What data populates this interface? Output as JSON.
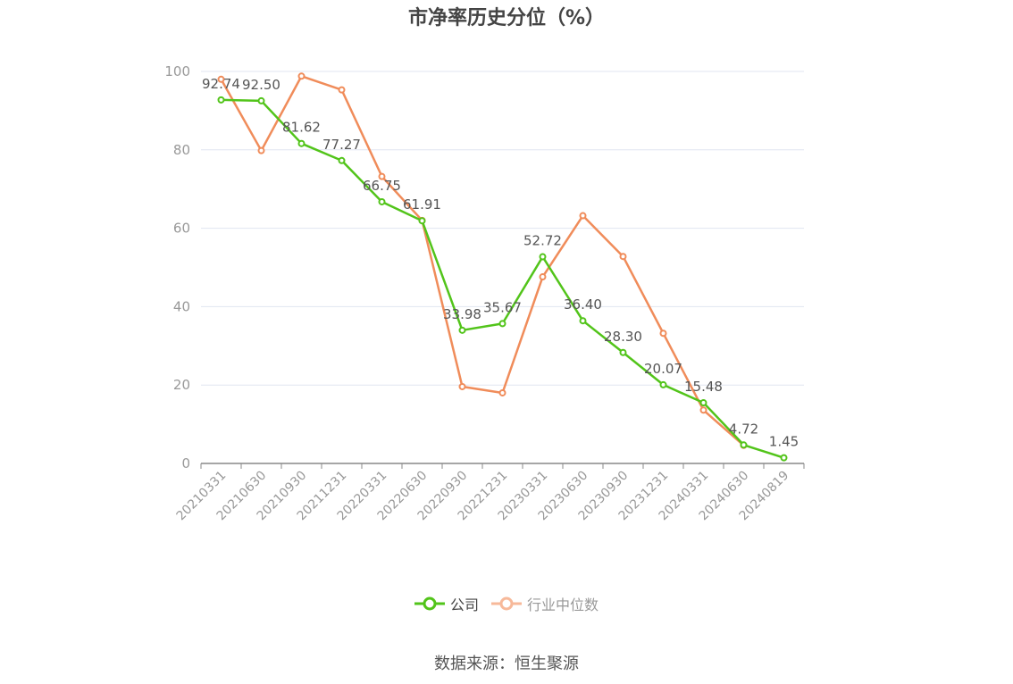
{
  "chart_data": {
    "type": "line",
    "title": "市净率历史分位（%）",
    "categories": [
      "20210331",
      "20210630",
      "20210930",
      "20211231",
      "20220331",
      "20220630",
      "20220930",
      "20221231",
      "20230331",
      "20230630",
      "20230930",
      "20231231",
      "20240331",
      "20240630",
      "20240819"
    ],
    "series": [
      {
        "name": "公司",
        "color": "#52c41a",
        "values": [
          92.74,
          92.5,
          81.62,
          77.27,
          66.75,
          61.91,
          33.98,
          35.67,
          52.72,
          36.4,
          28.3,
          20.07,
          15.48,
          4.72,
          1.45
        ],
        "show_labels": true
      },
      {
        "name": "行业中位数",
        "color": "#f08c5a",
        "values": [
          98.0,
          79.8,
          98.8,
          95.3,
          73.2,
          62.0,
          19.6,
          18.0,
          47.6,
          63.2,
          52.8,
          33.2,
          13.6,
          4.6,
          null
        ],
        "show_labels": false
      }
    ],
    "y_ticks": [
      "0",
      "20",
      "40",
      "60",
      "80",
      "100"
    ],
    "ylim": [
      0,
      100
    ],
    "grid": true,
    "legend_position": "bottom"
  },
  "source_text": "数据来源：恒生聚源"
}
